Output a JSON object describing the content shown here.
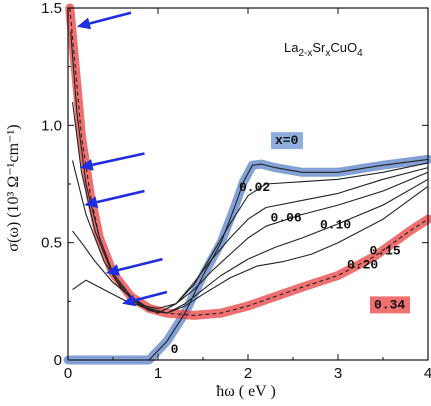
{
  "chart_data": {
    "type": "line",
    "title": "",
    "formula": {
      "base": "La",
      "sub1": "2-x",
      "mid": "Sr",
      "sub2": "x",
      "tail": "CuO",
      "sub3": "4"
    },
    "xlabel": "ħω  ( eV )",
    "ylabel": "σ(ω)  (10³ Ω⁻¹cm⁻¹)",
    "xlim": [
      0,
      4
    ],
    "ylim": [
      0,
      1.5
    ],
    "x_ticks": [
      {
        "v": 0,
        "label": "0"
      },
      {
        "v": 1,
        "label": "1"
      },
      {
        "v": 2,
        "label": "2"
      },
      {
        "v": 3,
        "label": "3"
      },
      {
        "v": 4,
        "label": "4"
      }
    ],
    "y_ticks": [
      {
        "v": 0,
        "label": "0"
      },
      {
        "v": 0.5,
        "label": "0.5"
      },
      {
        "v": 1.0,
        "label": "1.0"
      },
      {
        "v": 1.5,
        "label": "1.5"
      }
    ],
    "series": [
      {
        "name": "x=0",
        "color": "#222222",
        "highlight": "#5a82c8",
        "points": [
          [
            0,
            0
          ],
          [
            0.9,
            0
          ],
          [
            1.1,
            0.08
          ],
          [
            1.3,
            0.2
          ],
          [
            1.5,
            0.36
          ],
          [
            1.7,
            0.5
          ],
          [
            1.85,
            0.65
          ],
          [
            1.95,
            0.76
          ],
          [
            2.05,
            0.83
          ],
          [
            2.15,
            0.835
          ],
          [
            2.3,
            0.82
          ],
          [
            2.6,
            0.8
          ],
          [
            3.0,
            0.8
          ],
          [
            3.5,
            0.83
          ],
          [
            4.0,
            0.855
          ]
        ]
      },
      {
        "name": "0.02",
        "color": "#222222",
        "points": [
          [
            0.05,
            0.3
          ],
          [
            0.2,
            0.34
          ],
          [
            0.4,
            0.3
          ],
          [
            0.7,
            0.24
          ],
          [
            1.0,
            0.22
          ],
          [
            1.2,
            0.24
          ],
          [
            1.4,
            0.32
          ],
          [
            1.6,
            0.45
          ],
          [
            1.8,
            0.58
          ],
          [
            2.0,
            0.7
          ],
          [
            2.2,
            0.75
          ],
          [
            2.6,
            0.76
          ],
          [
            3.0,
            0.77
          ],
          [
            3.5,
            0.8
          ],
          [
            4.0,
            0.84
          ]
        ]
      },
      {
        "name": "0.06",
        "color": "#222222",
        "points": [
          [
            0.05,
            0.55
          ],
          [
            0.15,
            0.5
          ],
          [
            0.3,
            0.42
          ],
          [
            0.5,
            0.33
          ],
          [
            0.8,
            0.24
          ],
          [
            1.0,
            0.2
          ],
          [
            1.2,
            0.24
          ],
          [
            1.4,
            0.33
          ],
          [
            1.6,
            0.43
          ],
          [
            1.8,
            0.52
          ],
          [
            2.0,
            0.6
          ],
          [
            2.2,
            0.65
          ],
          [
            2.6,
            0.68
          ],
          [
            3.0,
            0.71
          ],
          [
            3.5,
            0.77
          ],
          [
            4.0,
            0.82
          ]
        ]
      },
      {
        "name": "0.10",
        "color": "#222222",
        "points": [
          [
            0.05,
            0.85
          ],
          [
            0.2,
            0.62
          ],
          [
            0.4,
            0.42
          ],
          [
            0.6,
            0.3
          ],
          [
            0.8,
            0.23
          ],
          [
            1.0,
            0.2
          ],
          [
            1.2,
            0.24
          ],
          [
            1.4,
            0.3
          ],
          [
            1.6,
            0.38
          ],
          [
            1.8,
            0.45
          ],
          [
            2.0,
            0.52
          ],
          [
            2.2,
            0.57
          ],
          [
            2.6,
            0.62
          ],
          [
            3.0,
            0.66
          ],
          [
            3.5,
            0.72
          ],
          [
            4.0,
            0.8
          ]
        ]
      },
      {
        "name": "0.15",
        "color": "#222222",
        "points": [
          [
            0.05,
            1.1
          ],
          [
            0.15,
            0.8
          ],
          [
            0.3,
            0.55
          ],
          [
            0.5,
            0.36
          ],
          [
            0.7,
            0.26
          ],
          [
            0.9,
            0.21
          ],
          [
            1.1,
            0.2
          ],
          [
            1.3,
            0.24
          ],
          [
            1.5,
            0.3
          ],
          [
            1.7,
            0.36
          ],
          [
            2.0,
            0.43
          ],
          [
            2.3,
            0.48
          ],
          [
            2.6,
            0.52
          ],
          [
            3.0,
            0.58
          ],
          [
            3.5,
            0.66
          ],
          [
            4.0,
            0.77
          ]
        ]
      },
      {
        "name": "0.20",
        "color": "#222222",
        "points": [
          [
            0.03,
            1.4
          ],
          [
            0.1,
            1.05
          ],
          [
            0.2,
            0.75
          ],
          [
            0.35,
            0.52
          ],
          [
            0.5,
            0.37
          ],
          [
            0.7,
            0.27
          ],
          [
            0.9,
            0.22
          ],
          [
            1.1,
            0.2
          ],
          [
            1.3,
            0.23
          ],
          [
            1.5,
            0.28
          ],
          [
            1.8,
            0.35
          ],
          [
            2.1,
            0.4
          ],
          [
            2.4,
            0.42
          ],
          [
            2.7,
            0.45
          ],
          [
            3.0,
            0.5
          ],
          [
            3.5,
            0.6
          ],
          [
            4.0,
            0.74
          ]
        ]
      },
      {
        "name": "0.34",
        "color": "#222222",
        "dashed": true,
        "highlight": "#e84040",
        "points": [
          [
            0.02,
            1.5
          ],
          [
            0.08,
            1.25
          ],
          [
            0.15,
            0.95
          ],
          [
            0.25,
            0.7
          ],
          [
            0.35,
            0.52
          ],
          [
            0.5,
            0.37
          ],
          [
            0.7,
            0.27
          ],
          [
            0.9,
            0.22
          ],
          [
            1.1,
            0.2
          ],
          [
            1.4,
            0.19
          ],
          [
            1.7,
            0.2
          ],
          [
            2.0,
            0.23
          ],
          [
            2.3,
            0.27
          ],
          [
            2.6,
            0.31
          ],
          [
            3.0,
            0.36
          ],
          [
            3.4,
            0.44
          ],
          [
            3.8,
            0.55
          ],
          [
            4.0,
            0.6
          ]
        ]
      }
    ],
    "labels": [
      {
        "text": "x=0",
        "x": 2.3,
        "y": 0.92,
        "boxed": true,
        "box_color": "#8eaede"
      },
      {
        "text": "0.02",
        "x": 1.9,
        "y": 0.72
      },
      {
        "text": "0.06",
        "x": 2.25,
        "y": 0.59
      },
      {
        "text": "0.10",
        "x": 2.8,
        "y": 0.56
      },
      {
        "text": "0.15",
        "x": 3.35,
        "y": 0.45
      },
      {
        "text": "0.20",
        "x": 3.1,
        "y": 0.39
      },
      {
        "text": "0.34",
        "x": 3.4,
        "y": 0.22,
        "boxed": true,
        "box_color": "#f07070"
      },
      {
        "text": "0",
        "x": 1.14,
        "y": 0.03
      }
    ],
    "arrows_color": "#1f2fe0",
    "arrows": [
      {
        "tip_x": 0.1,
        "tip_y": 1.42,
        "tail_x": 0.7,
        "tail_y": 1.48
      },
      {
        "tip_x": 0.13,
        "tip_y": 0.82,
        "tail_x": 0.85,
        "tail_y": 0.88
      },
      {
        "tip_x": 0.18,
        "tip_y": 0.66,
        "tail_x": 0.85,
        "tail_y": 0.72
      },
      {
        "tip_x": 0.42,
        "tip_y": 0.37,
        "tail_x": 1.05,
        "tail_y": 0.43
      },
      {
        "tip_x": 0.6,
        "tip_y": 0.24,
        "tail_x": 1.1,
        "tail_y": 0.29
      }
    ]
  }
}
